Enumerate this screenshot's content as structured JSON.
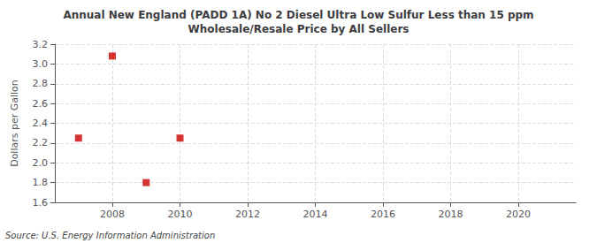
{
  "chart_data": {
    "type": "scatter",
    "title": "Annual New England (PADD 1A) No 2 Diesel Ultra Low Sulfur Less than 15 ppm\nWholesale/Resale Price by All Sellers",
    "ylabel": "Dollars per Gallon",
    "annotation": "Source: U.S. Energy Information Administration",
    "x": [
      2007,
      2008,
      2009,
      2010
    ],
    "values": [
      2.25,
      3.08,
      1.8,
      2.25
    ],
    "color": "#cc0000",
    "marker": "square",
    "xlim": [
      2006.3,
      2021.7
    ],
    "ylim": [
      1.6,
      3.2
    ],
    "xticks": [
      2008,
      2010,
      2012,
      2014,
      2016,
      2018,
      2020
    ],
    "yticks": [
      1.6,
      1.8,
      {
        "value": 2.0,
        "label": "2.0"
      },
      2.2,
      2.4,
      2.6,
      2.8,
      {
        "value": 3.0,
        "label": "3.0"
      },
      3.2
    ],
    "grid": true
  }
}
